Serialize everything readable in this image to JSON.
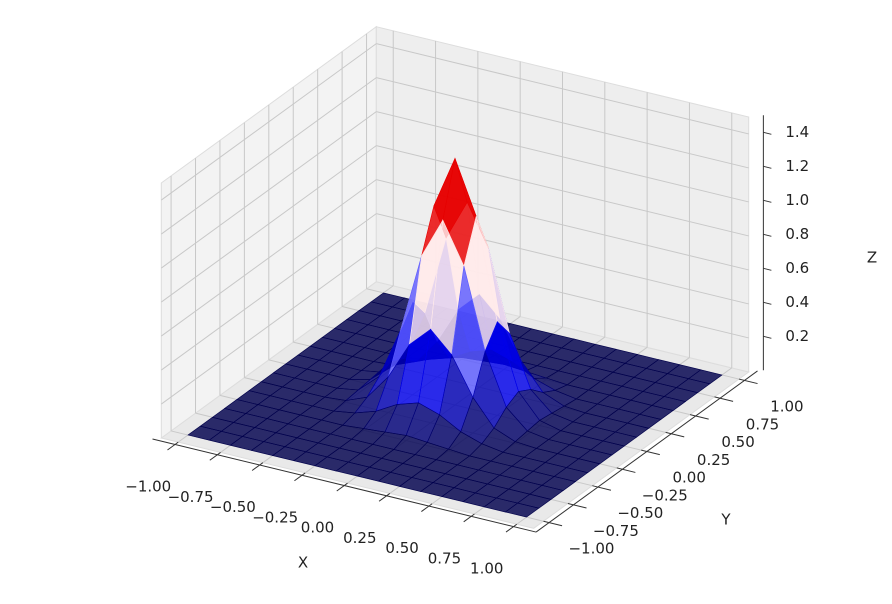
{
  "chart_data": {
    "type": "surface",
    "xlabel": "X",
    "ylabel": "Y",
    "zlabel": "Z",
    "x": [
      -1,
      -0.875,
      -0.75,
      -0.625,
      -0.5,
      -0.375,
      -0.25,
      -0.125,
      0,
      0.125,
      0.25,
      0.375,
      0.5,
      0.625,
      0.75,
      0.875,
      1
    ],
    "y": [
      -1,
      -0.875,
      -0.75,
      -0.625,
      -0.5,
      -0.375,
      -0.25,
      -0.125,
      0,
      0.125,
      0.25,
      0.375,
      0.5,
      0.625,
      0.75,
      0.875,
      1
    ],
    "z": [
      [
        0,
        0,
        0,
        0,
        0,
        0,
        0,
        0,
        0,
        0,
        0,
        0,
        0,
        0,
        0,
        0,
        0
      ],
      [
        0,
        0,
        0,
        0,
        0,
        0,
        0,
        0,
        0,
        0,
        0,
        0,
        0,
        0,
        0,
        0,
        0
      ],
      [
        0,
        0,
        0,
        0,
        0,
        0,
        0,
        0,
        0,
        0,
        0,
        0,
        0,
        0,
        0,
        0,
        0
      ],
      [
        0,
        0,
        0,
        0,
        0,
        0,
        0,
        0,
        0,
        0,
        0,
        0,
        0,
        0,
        0,
        0,
        0
      ],
      [
        0,
        0,
        0,
        0,
        0,
        0,
        0.01,
        0.02,
        0.03,
        0.02,
        0.01,
        0,
        0,
        0,
        0,
        0,
        0
      ],
      [
        0,
        0,
        0,
        0,
        0,
        0.02,
        0.06,
        0.13,
        0.17,
        0.13,
        0.06,
        0.02,
        0,
        0,
        0,
        0,
        0
      ],
      [
        0,
        0,
        0,
        0,
        0.01,
        0.06,
        0.21,
        0.43,
        0.55,
        0.43,
        0.21,
        0.06,
        0.01,
        0,
        0,
        0,
        0
      ],
      [
        0,
        0,
        0,
        0,
        0.02,
        0.13,
        0.43,
        0.9,
        1.14,
        0.9,
        0.43,
        0.13,
        0.02,
        0,
        0,
        0,
        0
      ],
      [
        0,
        0,
        0,
        0,
        0.03,
        0.17,
        0.55,
        1.14,
        1.45,
        1.14,
        0.55,
        0.17,
        0.03,
        0,
        0,
        0,
        0
      ],
      [
        0,
        0,
        0,
        0,
        0.02,
        0.13,
        0.43,
        0.9,
        1.14,
        0.9,
        0.43,
        0.13,
        0.02,
        0,
        0,
        0,
        0
      ],
      [
        0,
        0,
        0,
        0,
        0.01,
        0.06,
        0.21,
        0.43,
        0.55,
        0.43,
        0.21,
        0.06,
        0.01,
        0,
        0,
        0,
        0
      ],
      [
        0,
        0,
        0,
        0,
        0,
        0.02,
        0.06,
        0.13,
        0.17,
        0.13,
        0.06,
        0.02,
        0,
        0,
        0,
        0,
        0
      ],
      [
        0,
        0,
        0,
        0,
        0,
        0,
        0.01,
        0.02,
        0.03,
        0.02,
        0.01,
        0,
        0,
        0,
        0,
        0,
        0
      ],
      [
        0,
        0,
        0,
        0,
        0,
        0,
        0,
        0,
        0,
        0,
        0,
        0,
        0,
        0,
        0,
        0,
        0
      ],
      [
        0,
        0,
        0,
        0,
        0,
        0,
        0,
        0,
        0,
        0,
        0,
        0,
        0,
        0,
        0,
        0,
        0
      ],
      [
        0,
        0,
        0,
        0,
        0,
        0,
        0,
        0,
        0,
        0,
        0,
        0,
        0,
        0,
        0,
        0,
        0
      ],
      [
        0,
        0,
        0,
        0,
        0,
        0,
        0,
        0,
        0,
        0,
        0,
        0,
        0,
        0,
        0,
        0,
        0
      ]
    ],
    "colormap": [
      "#00004d",
      "#0000ff",
      "#ffffff",
      "#ff0000",
      "#800000"
    ],
    "xlim": [
      -1.1,
      1.1
    ],
    "ylim": [
      -1.1,
      1.1
    ],
    "zlim": [
      0,
      1.5
    ],
    "xticks": [
      {
        "value": -1,
        "label": "−1.00"
      },
      {
        "value": -0.75,
        "label": "−0.75"
      },
      {
        "value": -0.5,
        "label": "−0.50"
      },
      {
        "value": -0.25,
        "label": "−0.25"
      },
      {
        "value": 0,
        "label": "0.00"
      },
      {
        "value": 0.25,
        "label": "0.25"
      },
      {
        "value": 0.5,
        "label": "0.50"
      },
      {
        "value": 0.75,
        "label": "0.75"
      },
      {
        "value": 1,
        "label": "1.00"
      }
    ],
    "yticks": [
      {
        "value": -1,
        "label": "−1.00"
      },
      {
        "value": -0.75,
        "label": "−0.75"
      },
      {
        "value": -0.5,
        "label": "−0.50"
      },
      {
        "value": -0.25,
        "label": "−0.25"
      },
      {
        "value": 0,
        "label": "0.00"
      },
      {
        "value": 0.25,
        "label": "0.25"
      },
      {
        "value": 0.5,
        "label": "0.50"
      },
      {
        "value": 0.75,
        "label": "0.75"
      },
      {
        "value": 1,
        "label": "1.00"
      }
    ],
    "zticks": [
      0.2,
      0.4,
      0.6,
      0.8,
      {
        "value": 1,
        "label": "1.0"
      },
      1.2,
      1.4
    ],
    "grid": true
  }
}
